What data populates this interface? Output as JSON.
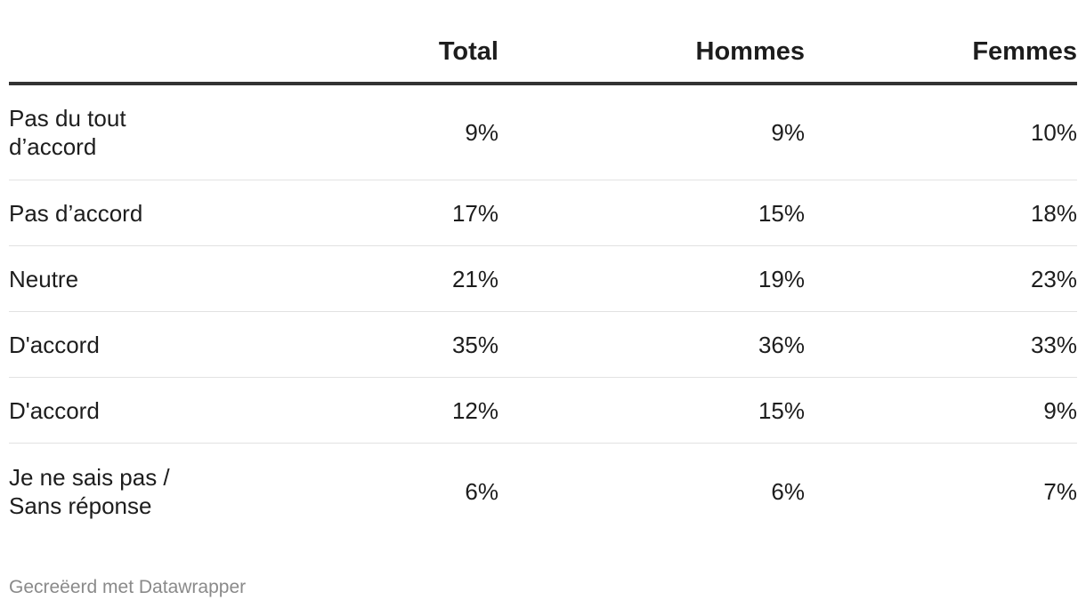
{
  "chart_data": {
    "type": "table",
    "columns": [
      "",
      "Total",
      "Hommes",
      "Femmes"
    ],
    "rows": [
      {
        "label": [
          "Pas du tout",
          "d’accord"
        ],
        "values": [
          "9%",
          "9%",
          "10%"
        ]
      },
      {
        "label": [
          "Pas d’accord"
        ],
        "values": [
          "17%",
          "15%",
          "18%"
        ]
      },
      {
        "label": [
          "Neutre"
        ],
        "values": [
          "21%",
          "19%",
          "23%"
        ]
      },
      {
        "label": [
          "D'accord"
        ],
        "values": [
          "35%",
          "36%",
          "33%"
        ]
      },
      {
        "label": [
          "D'accord"
        ],
        "values": [
          "12%",
          "15%",
          "9%"
        ]
      },
      {
        "label": [
          "Je ne sais pas /",
          "Sans réponse"
        ],
        "values": [
          "6%",
          "6%",
          "7%"
        ]
      }
    ]
  },
  "footer": {
    "credit": "Gecreëerd met Datawrapper"
  }
}
